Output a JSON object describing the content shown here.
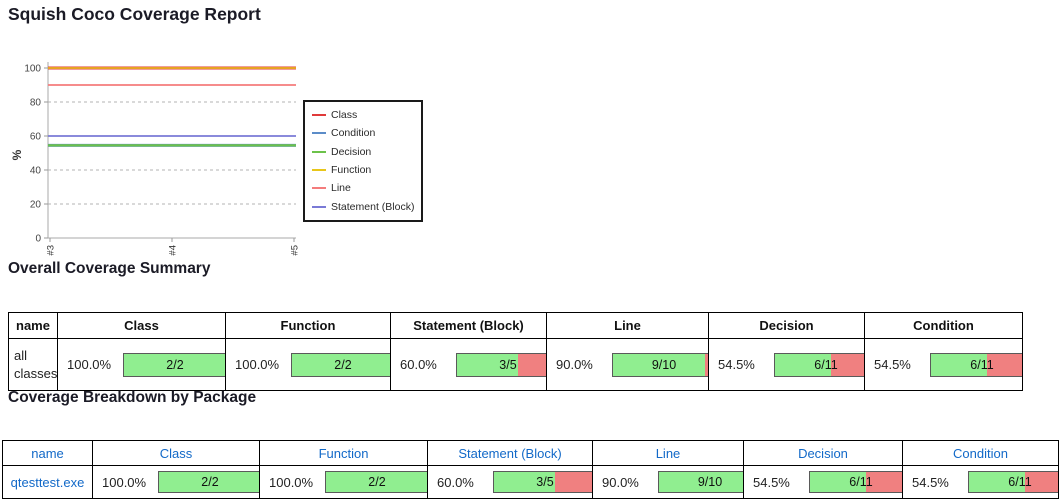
{
  "page": {
    "title": "Squish Coco Coverage Report"
  },
  "colors": {
    "bar_green": "#90ee90",
    "bar_red": "#f08080",
    "link_blue": "#1269c8"
  },
  "chart_data": {
    "type": "line",
    "title": "",
    "ylabel": "%",
    "x": [
      "#3",
      "#4",
      "#5"
    ],
    "ylim": [
      0,
      100
    ],
    "yticks": [
      0,
      20,
      40,
      60,
      80,
      100
    ],
    "grid": true,
    "legend_position": "right",
    "series": [
      {
        "name": "Class",
        "color": "#e03a3a",
        "values": [
          100,
          100,
          100
        ]
      },
      {
        "name": "Condition",
        "color": "#5b8cc8",
        "values": [
          54.5,
          54.5,
          54.5
        ]
      },
      {
        "name": "Decision",
        "color": "#6cc24a",
        "values": [
          54.5,
          54.5,
          54.5
        ]
      },
      {
        "name": "Function",
        "color": "#e8c61a",
        "values": [
          100,
          100,
          100
        ]
      },
      {
        "name": "Line",
        "color": "#f47c7c",
        "values": [
          90,
          90,
          90
        ]
      },
      {
        "name": "Statement (Block)",
        "color": "#7a7ad6",
        "values": [
          60,
          60,
          60
        ]
      }
    ]
  },
  "summary": {
    "heading": "Overall Coverage Summary",
    "columns": [
      "name",
      "Class",
      "Function",
      "Statement (Block)",
      "Line",
      "Decision",
      "Condition"
    ],
    "rows": [
      {
        "name": "all classes",
        "metrics": [
          {
            "pct": "100.0%",
            "frac": "2/2",
            "ratio": 1
          },
          {
            "pct": "100.0%",
            "frac": "2/2",
            "ratio": 1
          },
          {
            "pct": "60.0%",
            "frac": "3/5",
            "ratio": 0.6
          },
          {
            "pct": "90.0%",
            "frac": "9/10",
            "ratio": 0.9
          },
          {
            "pct": "54.5%",
            "frac": "6/11",
            "ratio": 0.545
          },
          {
            "pct": "54.5%",
            "frac": "6/11",
            "ratio": 0.545
          }
        ]
      }
    ]
  },
  "packages": {
    "heading": "Coverage Breakdown by Package",
    "columns": [
      "name",
      "Class",
      "Function",
      "Statement (Block)",
      "Line",
      "Decision",
      "Condition"
    ],
    "rows": [
      {
        "name": "qtesttest.exe",
        "link": true,
        "metrics": [
          {
            "pct": "100.0%",
            "frac": "2/2",
            "ratio": 1
          },
          {
            "pct": "100.0%",
            "frac": "2/2",
            "ratio": 1
          },
          {
            "pct": "60.0%",
            "frac": "3/5",
            "ratio": 0.6
          },
          {
            "pct": "90.0%",
            "frac": "9/10",
            "ratio": 0.9
          },
          {
            "pct": "54.5%",
            "frac": "6/11",
            "ratio": 0.545
          },
          {
            "pct": "54.5%",
            "frac": "6/11",
            "ratio": 0.545
          }
        ]
      }
    ]
  }
}
